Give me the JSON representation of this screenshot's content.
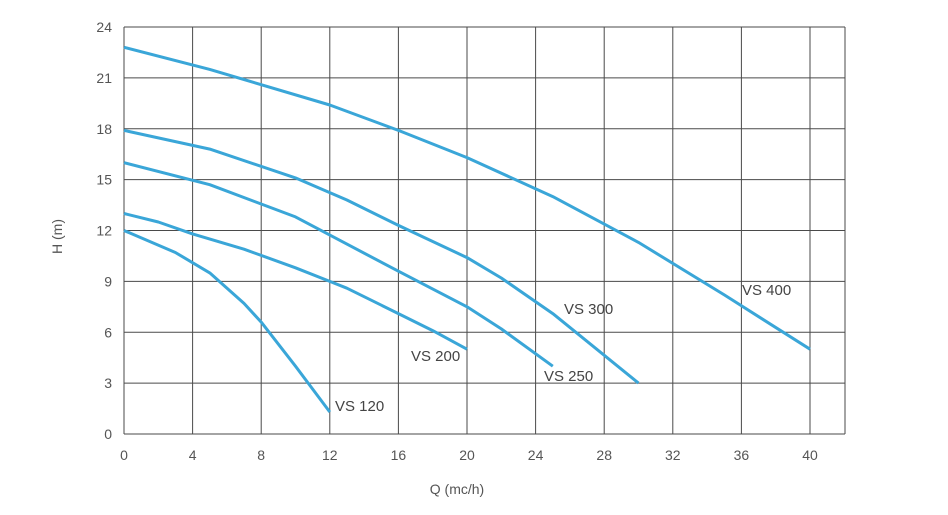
{
  "chart_data": {
    "type": "line",
    "xlabel": "Q (mc/h)",
    "ylabel": "H (m)",
    "xlim": [
      0,
      42
    ],
    "ylim": [
      0,
      24
    ],
    "xticks": [
      0,
      4,
      8,
      12,
      16,
      20,
      24,
      28,
      32,
      36,
      40
    ],
    "yticks": [
      0,
      3,
      6,
      9,
      12,
      15,
      18,
      21,
      24
    ],
    "grid": true,
    "color": "#3aa6d8",
    "series": [
      {
        "name": "VS 120",
        "points": [
          [
            0,
            12.0
          ],
          [
            3,
            10.7
          ],
          [
            5,
            9.5
          ],
          [
            7,
            7.7
          ],
          [
            8,
            6.6
          ],
          [
            10,
            4.0
          ],
          [
            12,
            1.3
          ]
        ]
      },
      {
        "name": "VS 200",
        "points": [
          [
            0,
            13.0
          ],
          [
            2,
            12.5
          ],
          [
            4,
            11.8
          ],
          [
            7,
            10.9
          ],
          [
            10,
            9.8
          ],
          [
            12,
            9.0
          ],
          [
            13,
            8.6
          ],
          [
            16,
            7.1
          ],
          [
            18,
            6.1
          ],
          [
            20,
            5.0
          ]
        ]
      },
      {
        "name": "VS 250",
        "points": [
          [
            0,
            16.0
          ],
          [
            5,
            14.7
          ],
          [
            10,
            12.8
          ],
          [
            13,
            11.2
          ],
          [
            16,
            9.6
          ],
          [
            20,
            7.5
          ],
          [
            22,
            6.2
          ],
          [
            25,
            4.0
          ]
        ]
      },
      {
        "name": "VS 300",
        "points": [
          [
            0,
            17.9
          ],
          [
            5,
            16.8
          ],
          [
            10,
            15.1
          ],
          [
            13,
            13.8
          ],
          [
            16,
            12.3
          ],
          [
            20,
            10.4
          ],
          [
            22,
            9.2
          ],
          [
            25,
            7.1
          ],
          [
            30,
            3.0
          ]
        ]
      },
      {
        "name": "VS 400",
        "points": [
          [
            0,
            22.8
          ],
          [
            5,
            21.5
          ],
          [
            12,
            19.4
          ],
          [
            16,
            17.9
          ],
          [
            20,
            16.3
          ],
          [
            25,
            14.0
          ],
          [
            30,
            11.3
          ],
          [
            35,
            8.2
          ],
          [
            40,
            5.0
          ]
        ]
      }
    ]
  }
}
